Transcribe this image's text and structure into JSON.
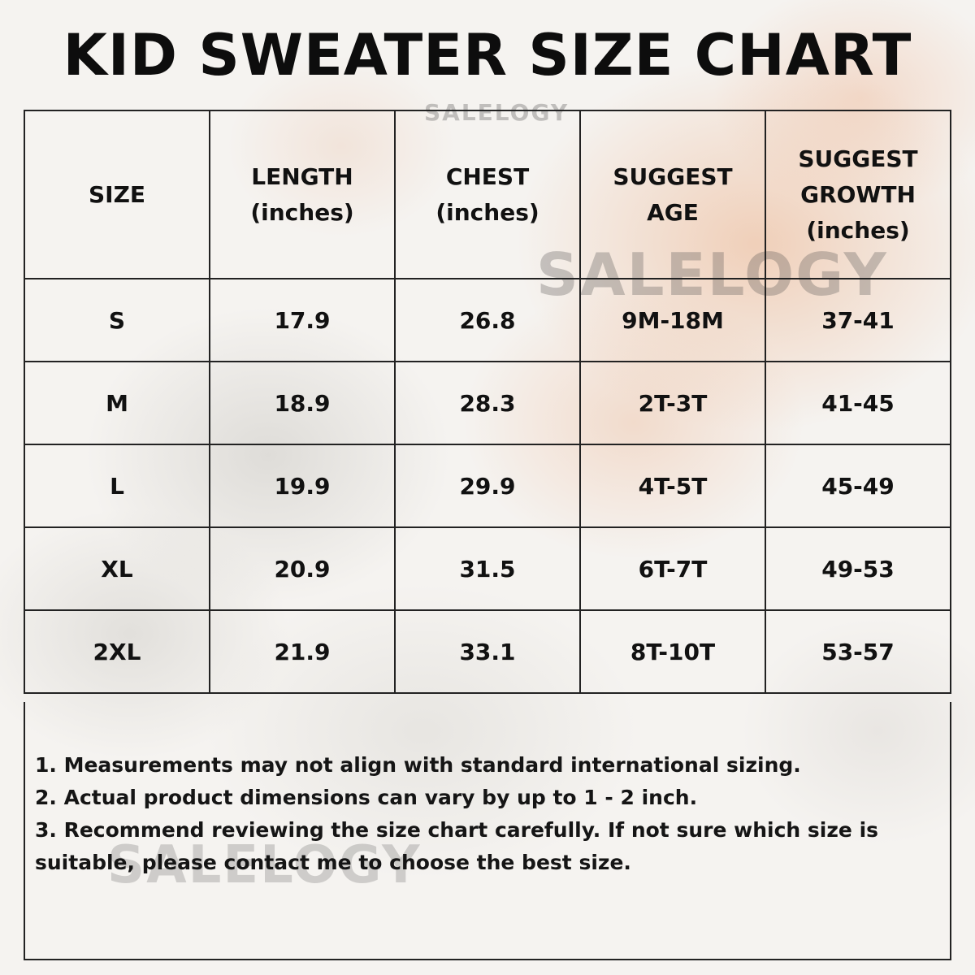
{
  "title": "KID SWEATER SIZE CHART",
  "watermark": "SALELOGY",
  "colors": {
    "background": "#f5f3f0",
    "accent_wash": "#ecb28c",
    "text": "#111111",
    "border": "#222222"
  },
  "table": {
    "headers": [
      {
        "lines": [
          "SIZE"
        ]
      },
      {
        "lines": [
          "LENGTH",
          "(inches)"
        ]
      },
      {
        "lines": [
          "CHEST",
          "(inches)"
        ]
      },
      {
        "lines": [
          "SUGGEST",
          "AGE"
        ]
      },
      {
        "lines": [
          "SUGGEST",
          "GROWTH",
          "(inches)"
        ]
      }
    ],
    "rows": [
      [
        "S",
        "17.9",
        "26.8",
        "9M-18M",
        "37-41"
      ],
      [
        "M",
        "18.9",
        "28.3",
        "2T-3T",
        "41-45"
      ],
      [
        "L",
        "19.9",
        "29.9",
        "4T-5T",
        "45-49"
      ],
      [
        "XL",
        "20.9",
        "31.5",
        "6T-7T",
        "49-53"
      ],
      [
        "2XL",
        "21.9",
        "33.1",
        "8T-10T",
        "53-57"
      ]
    ]
  },
  "notes": [
    "1. Measurements may not align with standard international sizing.",
    "2. Actual product dimensions can vary by up to 1 - 2 inch.",
    "3. Recommend reviewing the size chart carefully. If not sure which size is suitable, please contact me to choose the best size."
  ]
}
